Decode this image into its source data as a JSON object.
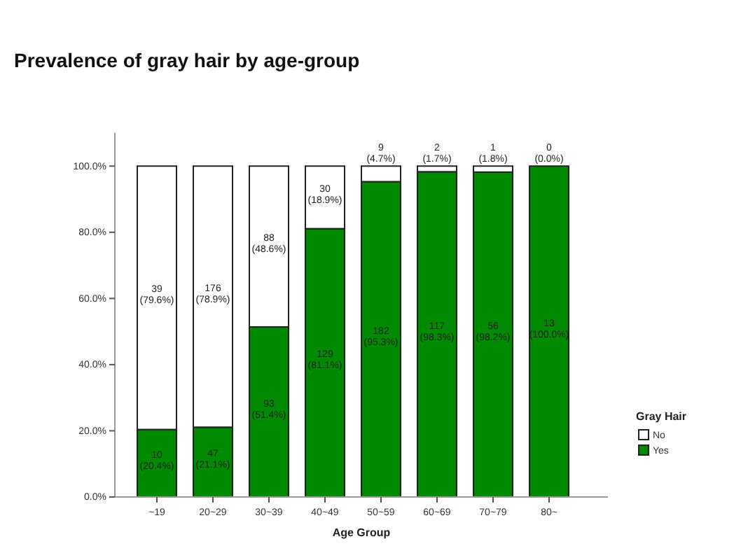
{
  "chart_data": {
    "type": "bar",
    "title": "Prevalence of gray hair by age-group",
    "xlabel": "Age Group",
    "legend_title": "Gray Hair",
    "categories": [
      "~19",
      "20~29",
      "30~39",
      "40~49",
      "50~59",
      "60~69",
      "70~79",
      "80~"
    ],
    "stacked": true,
    "legend": "right",
    "ylim": [
      0,
      110
    ],
    "yticks": [
      {
        "value": 0,
        "label": "0.0%"
      },
      {
        "value": 20,
        "label": "20.0%"
      },
      {
        "value": 40,
        "label": "40.0%"
      },
      {
        "value": 60,
        "label": "60.0%"
      },
      {
        "value": 80,
        "label": "80.0%"
      },
      {
        "value": 100,
        "label": "100.0%"
      }
    ],
    "series": [
      {
        "name": "Yes",
        "color": "#008a00",
        "values": [
          20.4,
          21.1,
          51.4,
          81.1,
          95.3,
          98.3,
          98.2,
          100.0
        ],
        "value_labels": [
          "10 (20.4%)",
          "47 (21.1%)",
          "93 (51.4%)",
          "129 (81.1%)",
          "182 (95.3%)",
          "117 (98.3%)",
          "56 (98.2%)",
          "13 (100.0%)"
        ]
      },
      {
        "name": "No",
        "color": "#ffffff",
        "values": [
          79.6,
          78.9,
          48.6,
          18.9,
          4.7,
          1.7,
          1.8,
          0.0
        ],
        "value_labels": [
          "39 (79.6%)",
          "176 (78.9%)",
          "88 (48.6%)",
          "30 (18.9%)",
          "9 (4.7%)",
          "2 (1.7%)",
          "1 (1.8%)",
          "0 (0.0%)"
        ]
      }
    ]
  }
}
